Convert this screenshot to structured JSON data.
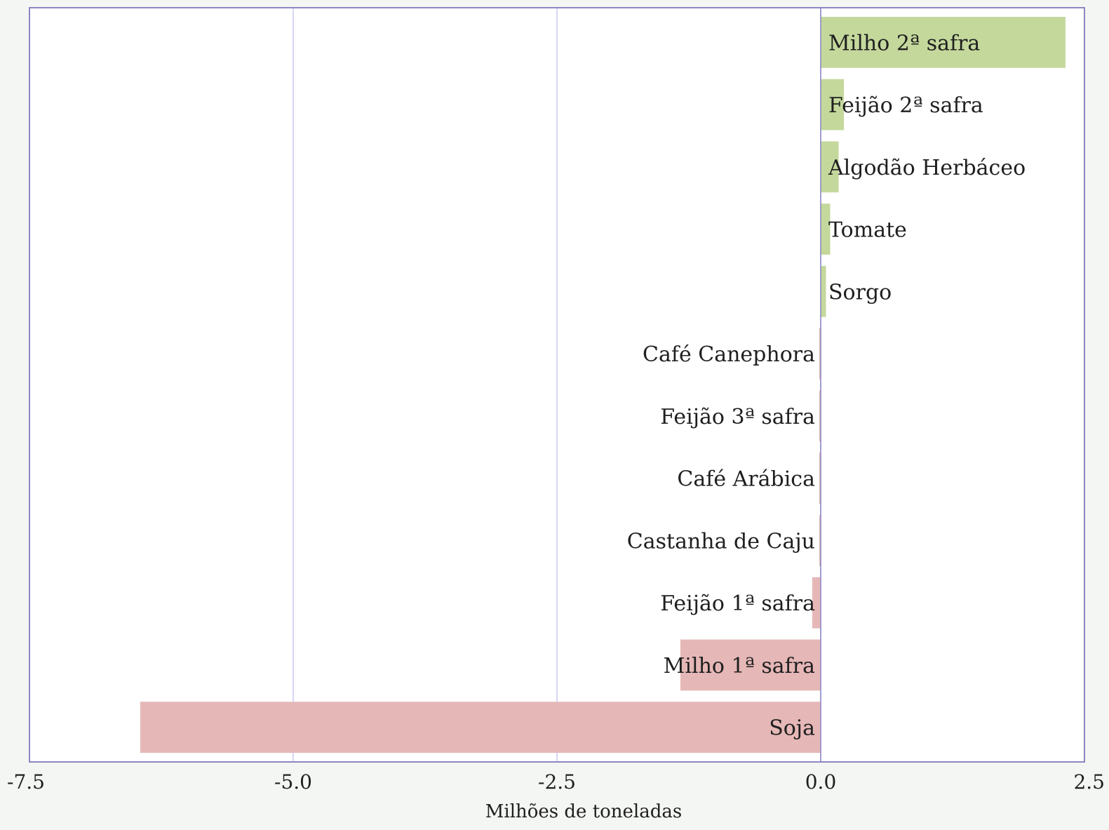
{
  "chart_data": {
    "type": "bar",
    "orientation": "horizontal",
    "xlabel": "Milhões de toneladas",
    "ylabel": "",
    "title": "",
    "xlim": [
      -7.5,
      2.5
    ],
    "xticks": [
      "-7.5",
      "-5.0",
      "-2.5",
      "0.0",
      "2.5"
    ],
    "xtick_values": [
      -7.5,
      -5.0,
      -2.5,
      0.0,
      2.5
    ],
    "grid": "vertical",
    "categories": [
      "Milho 2ª safra",
      "Feijão 2ª safra",
      "Algodão Herbáceo",
      "Tomate",
      "Sorgo",
      "Café Canephora",
      "Feijão 3ª safra",
      "Café Arábica",
      "Castanha de Caju",
      "Feijão 1ª safra",
      "Milho 1ª safra",
      "Soja"
    ],
    "values": [
      2.32,
      0.22,
      0.17,
      0.09,
      0.05,
      -0.01,
      -0.01,
      -0.01,
      -0.01,
      -0.08,
      -1.33,
      -6.45
    ],
    "colors": {
      "positive": "#c4d89c",
      "negative": "#e6b7b7",
      "frame": "#8a87c2",
      "grid": "#c9c8f2",
      "background": "#f4f6f3",
      "plot_background": "#ffffff"
    }
  }
}
